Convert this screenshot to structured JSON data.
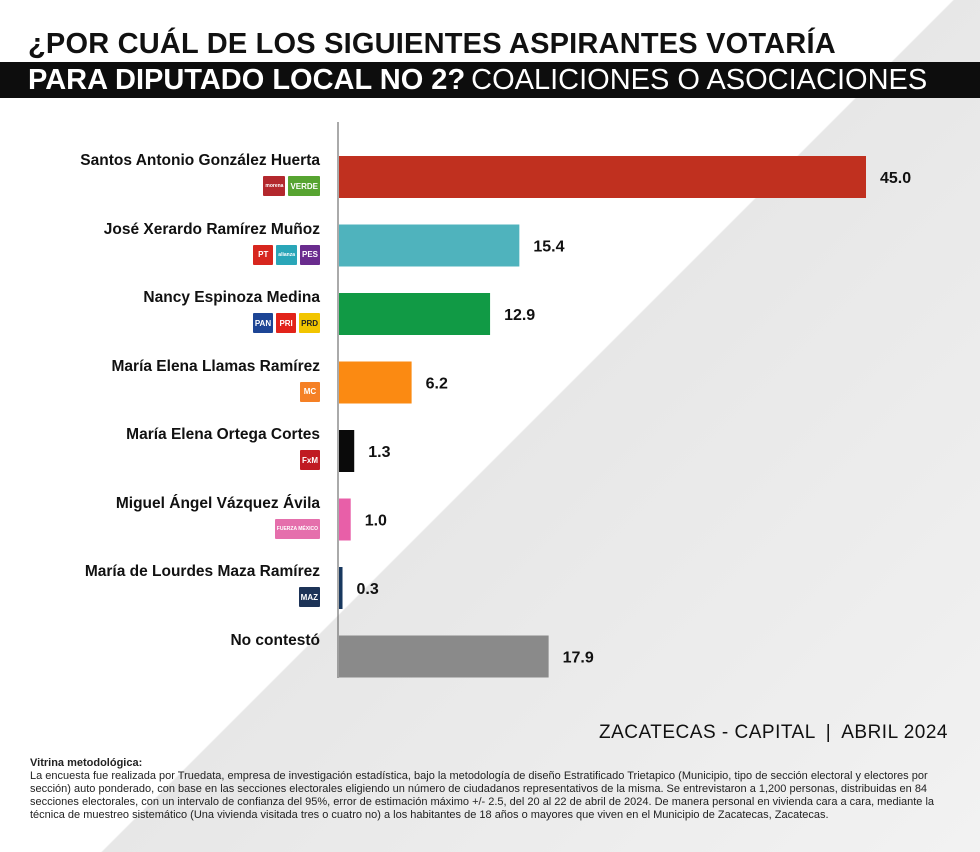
{
  "header": {
    "line1": "¿POR CUÁL DE LOS SIGUIENTES ASPIRANTES VOTARÍA",
    "line2_bold": "PARA DIPUTADO LOCAL NO 2?",
    "line2_light": "COALICIONES O ASOCIACIONES"
  },
  "chart_data": {
    "type": "bar",
    "orientation": "horizontal",
    "categories": [
      "Santos Antonio González Huerta",
      "José Xerardo Ramírez Muñoz",
      "Nancy Espinoza Medina",
      "María Elena Llamas Ramírez",
      "María Elena Ortega Cortes",
      "Miguel Ángel Vázquez Ávila",
      "María de Lourdes Maza Ramírez",
      "No contestó"
    ],
    "values": [
      45.0,
      15.4,
      12.9,
      6.2,
      1.3,
      1.0,
      0.3,
      17.9
    ],
    "value_labels": [
      "45.0",
      "15.4",
      "12.9",
      "6.2",
      "1.3",
      "1.0",
      "0.3",
      "17.9"
    ],
    "colors": [
      "#c0301f",
      "#4fb3bd",
      "#119a45",
      "#fb8a12",
      "#0a0a0a",
      "#e85fa8",
      "#18385f",
      "#8a8a8a"
    ],
    "xlim": [
      0,
      45
    ]
  },
  "parties": [
    [
      {
        "icon": "morena-logo",
        "text": "morena",
        "color": "#b3282d"
      },
      {
        "icon": "verde-logo",
        "text": "VERDE",
        "color": "#57a431"
      }
    ],
    [
      {
        "icon": "pt-logo",
        "text": "PT",
        "color": "#d7261e"
      },
      {
        "icon": "alianza-logo",
        "text": "alianza",
        "color": "#2aa6b8"
      },
      {
        "icon": "pes-logo",
        "text": "PES",
        "color": "#6a2c8e"
      }
    ],
    [
      {
        "icon": "pan-logo",
        "text": "PAN",
        "color": "#1d4595"
      },
      {
        "icon": "pri-logo",
        "text": "PRI",
        "color": "#e2231a"
      },
      {
        "icon": "prd-logo",
        "text": "PRD",
        "color": "#f2c500"
      }
    ],
    [
      {
        "icon": "movimiento-ciudadano-logo",
        "text": "MC",
        "color": "#f58025"
      }
    ],
    [
      {
        "icon": "fxm-logo",
        "text": "FxM",
        "color": "#c01a22"
      }
    ],
    [
      {
        "icon": "fuerza-mexico-logo",
        "text": "FUERZA MÉXICO",
        "color": "#e56fac"
      }
    ],
    [
      {
        "icon": "maz-logo",
        "text": "MAZ",
        "color": "#1d3357"
      }
    ],
    []
  ],
  "footer": {
    "location": "ZACATECAS - CAPITAL",
    "separator": "|",
    "date": "ABRIL 2024",
    "method_title": "Vitrina metodológica:",
    "method_text": "La encuesta fue realizada por Truedata, empresa de investigación estadística, bajo la metodología de diseño Estratificado Trietapico (Municipio, tipo de sección electoral y electores por sección) auto ponderado, con base en las secciones electorales eligiendo un número de ciudadanos representativos de la misma. Se entrevistaron a 1,200 personas, distribuidas en 84 secciones electorales, con un intervalo de confianza del 95%, error de estimación máximo +/- 2.5, del 20 al 22 de abril de 2024. De manera personal en vivienda cara a cara, mediante la técnica de muestreo sistemático (Una vivienda visitada tres o cuatro no) a los habitantes de 18 años o mayores que viven en el Municipio de Zacatecas, Zacatecas."
  }
}
